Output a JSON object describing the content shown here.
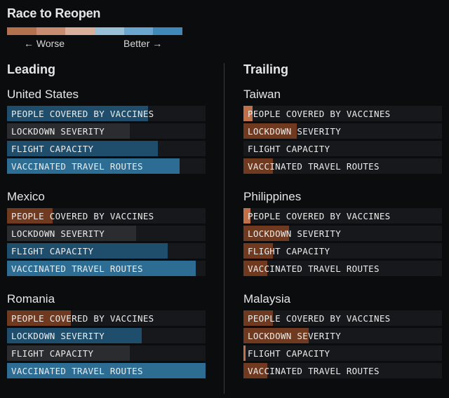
{
  "title": "Race to Reopen",
  "legend": {
    "worse_label": "← Worse",
    "better_label": "Better →",
    "colors": [
      "#b4714e",
      "#c88d70",
      "#d8b09c",
      "#99c0d6",
      "#6aa6cd",
      "#3f88b8"
    ]
  },
  "columns": {
    "leading": "Leading",
    "trailing": "Trailing"
  },
  "metrics": [
    "PEOPLE COVERED BY VACCINES",
    "LOCKDOWN SEVERITY",
    "FLIGHT CAPACITY",
    "VACCINATED TRAVEL ROUTES"
  ],
  "chart_data": {
    "type": "bar",
    "title": "Race to Reopen",
    "scale": [
      0,
      1
    ],
    "colors": {
      "better_strong": "#2d6d93",
      "better_mid": "#1f4e6c",
      "neutral": "#2b2c2f",
      "worse_mid": "#6f3a1f",
      "worse_light": "#c0714a"
    },
    "groups": [
      {
        "name": "Leading",
        "countries": [
          {
            "name": "United States",
            "values": [
              0.71,
              0.62,
              0.76,
              0.87
            ],
            "tones": [
              "better_mid",
              "neutral",
              "better_mid",
              "better_strong"
            ]
          },
          {
            "name": "Mexico",
            "values": [
              0.23,
              0.65,
              0.81,
              0.95
            ],
            "tones": [
              "worse_mid",
              "neutral",
              "better_mid",
              "better_strong"
            ]
          },
          {
            "name": "Romania",
            "values": [
              0.32,
              0.68,
              0.62,
              1.0
            ],
            "tones": [
              "worse_mid",
              "better_mid",
              "neutral",
              "better_strong"
            ]
          }
        ]
      },
      {
        "name": "Trailing",
        "countries": [
          {
            "name": "Taiwan",
            "values": [
              0.045,
              0.27,
              0.0,
              0.15
            ],
            "tones": [
              "worse_light",
              "worse_mid",
              "neutral",
              "worse_mid"
            ]
          },
          {
            "name": "Philippines",
            "values": [
              0.035,
              0.23,
              0.15,
              0.12
            ],
            "tones": [
              "worse_light",
              "worse_mid",
              "worse_mid",
              "worse_mid"
            ]
          },
          {
            "name": "Malaysia",
            "values": [
              0.15,
              0.33,
              0.01,
              0.12
            ],
            "tones": [
              "worse_mid",
              "worse_mid",
              "worse_light",
              "worse_mid"
            ]
          }
        ]
      }
    ]
  }
}
